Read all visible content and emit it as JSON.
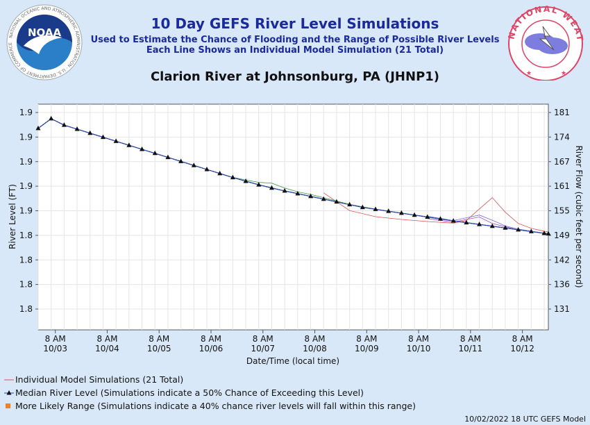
{
  "header": {
    "title": "10 Day GEFS River Level Simulations",
    "subtitle_1": "Used to Estimate the Chance of Flooding and the Range of Possible River Levels",
    "subtitle_2": "Each Line Shows an Individual Model Simulation (21 Total)",
    "station": "Clarion River at Johnsonburg, PA (JHNP1)"
  },
  "logos": {
    "noaa_text": "NOAA",
    "noaa_ring": "NATIONAL OCEANIC AND ATMOSPHERIC ADMINISTRATION · U.S. DEPARTMENT OF COMMERCE",
    "nws_ring": "NATIONAL WEATHER SERVICE"
  },
  "legend": {
    "individual": "Individual Model Simulations (21 Total)",
    "median": "Median River Level (Simulations indicate a 50% Chance of Exceeding this Level)",
    "range": "More Likely Range (Simulations indicate a 40% chance river levels will fall within this range)"
  },
  "footer": "10/02/2022 18 UTC GEFS Model",
  "colors": {
    "title": "#1a2a9a",
    "background": "#d8e8f8",
    "plot_bg": "#ffffff",
    "median_line": "#3a58c8",
    "individual": [
      "#e05050",
      "#7070e0",
      "#409040",
      "#a050c0",
      "#4090e0",
      "#808080"
    ],
    "range_marker": "#f08020"
  },
  "chart_data": {
    "type": "line",
    "xlabel": "Date/Time (local time)",
    "ylabel": "River Level (FT)",
    "ylabel_right": "River Flow (cubic feet per second)",
    "x_ticks": [
      {
        "time": "8 AM",
        "date": "10/03",
        "day": 0.33
      },
      {
        "time": "8 AM",
        "date": "10/04",
        "day": 1.33
      },
      {
        "time": "8 AM",
        "date": "10/05",
        "day": 2.33
      },
      {
        "time": "8 AM",
        "date": "10/06",
        "day": 3.33
      },
      {
        "time": "8 AM",
        "date": "10/07",
        "day": 4.33
      },
      {
        "time": "8 AM",
        "date": "10/08",
        "day": 5.33
      },
      {
        "time": "8 AM",
        "date": "10/09",
        "day": 6.33
      },
      {
        "time": "8 AM",
        "date": "10/10",
        "day": 7.33
      },
      {
        "time": "8 AM",
        "date": "10/11",
        "day": 8.33
      },
      {
        "time": "8 AM",
        "date": "10/12",
        "day": 9.33
      }
    ],
    "x_range_days": [
      0,
      9.83
    ],
    "y_ticks_left": [
      "1.8",
      "1.8",
      "1.8",
      "1.8",
      "1.9",
      "1.9",
      "1.9",
      "1.9",
      "1.9"
    ],
    "y_ticks_right": [
      "131",
      "136",
      "142",
      "149",
      "155",
      "161",
      "167",
      "174",
      "181"
    ],
    "ylim": [
      1.77,
      1.91
    ],
    "grid": true,
    "median": {
      "name": "Median River Level",
      "day": [
        0,
        0.25,
        0.5,
        0.75,
        1,
        1.25,
        1.5,
        1.75,
        2,
        2.25,
        2.5,
        2.75,
        3,
        3.25,
        3.5,
        3.75,
        4,
        4.25,
        4.5,
        4.75,
        5,
        5.25,
        5.5,
        5.75,
        6,
        6.25,
        6.5,
        6.75,
        7,
        7.25,
        7.5,
        7.75,
        8,
        8.25,
        8.5,
        8.75,
        9,
        9.25,
        9.5,
        9.75,
        9.83
      ],
      "values": [
        1.895,
        1.901,
        1.897,
        1.8945,
        1.892,
        1.8895,
        1.887,
        1.8845,
        1.882,
        1.8795,
        1.877,
        1.8745,
        1.872,
        1.8695,
        1.867,
        1.8645,
        1.8622,
        1.86,
        1.858,
        1.8562,
        1.8545,
        1.8528,
        1.8511,
        1.8494,
        1.8477,
        1.846,
        1.8448,
        1.8436,
        1.8424,
        1.8412,
        1.84,
        1.8388,
        1.8376,
        1.8365,
        1.8354,
        1.8343,
        1.8332,
        1.8321,
        1.831,
        1.8299,
        1.8296
      ]
    },
    "individual": [
      {
        "day": [
          5.5,
          6.0,
          6.5,
          7.0,
          7.5,
          8.0,
          8.25,
          8.5,
          8.75,
          9.0,
          9.25,
          9.5,
          9.75,
          9.83
        ],
        "values": [
          1.855,
          1.844,
          1.8402,
          1.8385,
          1.8372,
          1.8362,
          1.8378,
          1.845,
          1.852,
          1.843,
          1.836,
          1.833,
          1.8312,
          1.8308
        ]
      },
      {
        "day": [
          7.5,
          8.0,
          8.25,
          8.5,
          8.75,
          9.0,
          9.25,
          9.5,
          9.75,
          9.83
        ],
        "values": [
          1.8405,
          1.8378,
          1.8395,
          1.8412,
          1.838,
          1.8345,
          1.8325,
          1.8312,
          1.83,
          1.8298
        ]
      },
      {
        "day": [
          3.75,
          4.0,
          4.25,
          4.5,
          4.75,
          5.0,
          5.25,
          5.5,
          6.0,
          6.5
        ],
        "values": [
          1.8646,
          1.863,
          1.8615,
          1.861,
          1.858,
          1.8556,
          1.854,
          1.852,
          1.8478,
          1.8449
        ]
      },
      {
        "day": [
          7.5,
          8.0,
          8.25,
          8.5,
          8.75,
          9.0,
          9.25,
          9.5,
          9.75,
          9.83
        ],
        "values": [
          1.839,
          1.8368,
          1.8385,
          1.84,
          1.836,
          1.834,
          1.832,
          1.831,
          1.8298,
          1.8296
        ]
      }
    ]
  }
}
